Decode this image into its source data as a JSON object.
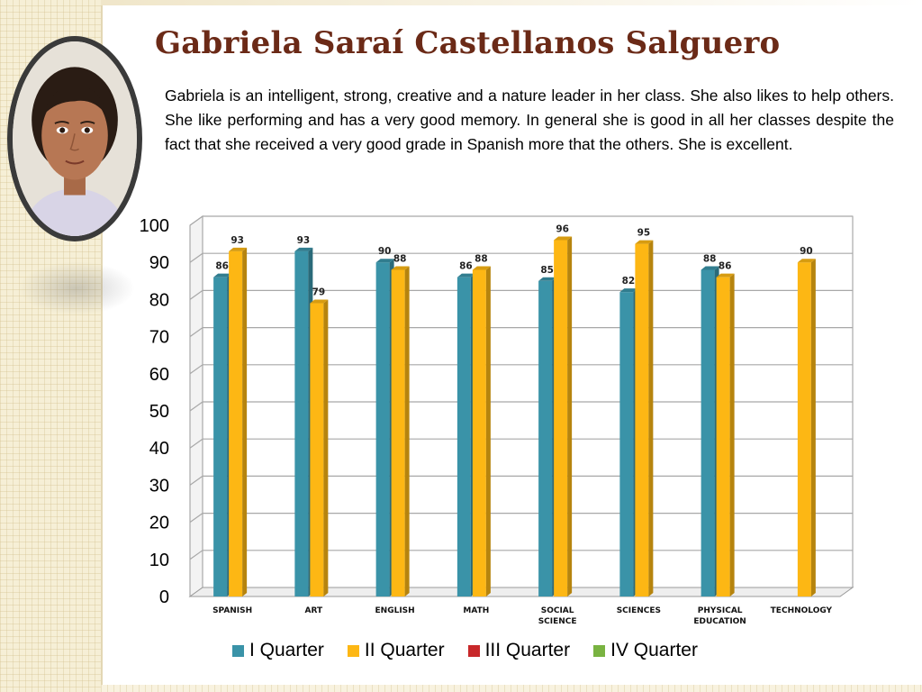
{
  "title": "Gabriela Saraí Castellanos Salguero",
  "description": "Gabriela is an intelligent, strong, creative and a nature leader in her class.  She also likes to help others.  She like performing and has a very good memory.   In general she is good in all her classes despite the fact that she received a very good grade in Spanish more that the others. She is excellent.",
  "colors": {
    "title": "#6b2a17",
    "q1": "#3a93a8",
    "q2": "#fdb714",
    "q3": "#c8282a",
    "q4": "#79b341"
  },
  "chart_data": {
    "type": "bar",
    "categories": [
      "SPANISH",
      "ART",
      "ENGLISH",
      "MATH",
      "SOCIAL SCIENCE",
      "SCIENCES",
      "PHYSICAL EDUCATION",
      "TECHNOLOGY"
    ],
    "series": [
      {
        "name": "I Quarter",
        "values": [
          86,
          93,
          90,
          86,
          85,
          82,
          88,
          null
        ]
      },
      {
        "name": "II Quarter",
        "values": [
          93,
          79,
          88,
          88,
          96,
          95,
          86,
          90
        ]
      },
      {
        "name": "III Quarter",
        "values": [
          null,
          null,
          null,
          null,
          null,
          null,
          null,
          null
        ]
      },
      {
        "name": "IV Quarter",
        "values": [
          null,
          null,
          null,
          null,
          null,
          null,
          null,
          null
        ]
      }
    ],
    "ylim": [
      0,
      100
    ],
    "yticks": [
      0,
      10,
      20,
      30,
      40,
      50,
      60,
      70,
      80,
      90,
      100
    ],
    "grid": true,
    "legend_position": "bottom",
    "style": "3d-column"
  }
}
